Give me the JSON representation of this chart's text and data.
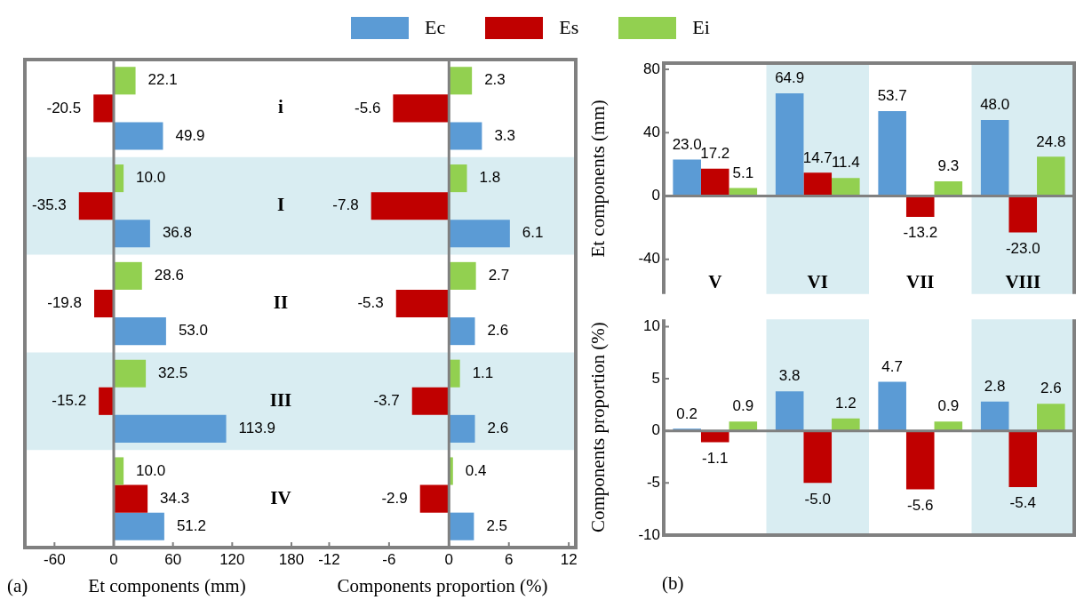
{
  "chart_data": [
    {
      "type": "bar",
      "orientation": "horizontal",
      "xlabel": "Et components (mm)",
      "categories": [
        "i",
        "I",
        "II",
        "III",
        "IV"
      ],
      "series": [
        {
          "name": "Ec",
          "color": "#5b9bd5",
          "values": [
            49.9,
            36.8,
            53,
            113.9,
            51.2
          ],
          "value_labels": [
            "49.9",
            "36.8",
            "53.0",
            "113.9",
            "51.2"
          ]
        },
        {
          "name": "Es",
          "color": "#c00000",
          "values": [
            -20.5,
            -35.3,
            -19.8,
            -15.2,
            34.3
          ],
          "value_labels": [
            "-20.5",
            "-35.3",
            "-19.8",
            "-15.2",
            "34.3"
          ]
        },
        {
          "name": "Ei",
          "color": "#92d050",
          "values": [
            22.1,
            10,
            28.6,
            32.5,
            10
          ],
          "value_labels": [
            "22.1",
            "10.0",
            "28.6",
            "32.5",
            "10.0"
          ]
        }
      ],
      "xlim": [
        -90,
        198
      ],
      "xticks": [
        -60,
        0,
        60,
        120,
        180
      ],
      "legend": "top",
      "bands": [
        {
          "axis": "y",
          "from": "I",
          "to": "I",
          "color": "#d9edf2"
        },
        {
          "axis": "y",
          "from": "III",
          "to": "III",
          "color": "#d9edf2"
        }
      ],
      "annotations": [
        "(a)"
      ]
    },
    {
      "type": "bar",
      "orientation": "horizontal",
      "xlabel": "Components proportion (%)",
      "categories": [
        "i",
        "I",
        "II",
        "III",
        "IV"
      ],
      "series": [
        {
          "color": "#5b9bd5",
          "values": [
            3.3,
            6.1,
            2.6,
            2.6,
            2.5
          ],
          "value_labels": [
            "3.3",
            "6.1",
            "2.6",
            "2.6",
            "2.5"
          ]
        },
        {
          "color": "#c00000",
          "values": [
            -5.6,
            -7.8,
            -5.3,
            -3.7,
            -2.9
          ],
          "value_labels": [
            "-5.6",
            "-7.8",
            "-5.3",
            "-3.7",
            "-2.9"
          ]
        },
        {
          "color": "#92d050",
          "values": [
            2.3,
            1.8,
            2.7,
            1.1,
            0.4
          ],
          "value_labels": [
            "2.3",
            "1.8",
            "2.7",
            "1.1",
            "0.4"
          ]
        }
      ],
      "xlim": [
        -14,
        12.7
      ],
      "xticks": [
        -12,
        -6,
        0,
        6,
        12
      ],
      "tick_labels": "x",
      "bands": [
        {
          "axis": "y",
          "from": "I",
          "to": "I",
          "color": "#d9edf2"
        },
        {
          "axis": "y",
          "from": "III",
          "to": "III",
          "color": "#d9edf2"
        }
      ]
    },
    {
      "type": "bar",
      "ylabel": "Et components (mm)",
      "categories": [
        "V",
        "VI",
        "VII",
        "VIII"
      ],
      "series": [
        {
          "color": "#5b9bd5",
          "values": [
            23,
            64.9,
            53.7,
            48
          ],
          "value_labels": [
            "23.0",
            "64.9",
            "53.7",
            "48.0"
          ]
        },
        {
          "color": "#c00000",
          "values": [
            17.2,
            14.7,
            -13.2,
            -23
          ],
          "value_labels": [
            "17.2",
            "14.7",
            "-13.2",
            "-23.0"
          ]
        },
        {
          "color": "#92d050",
          "values": [
            5.1,
            11.4,
            9.3,
            24.8
          ],
          "value_labels": [
            "5.1",
            "11.4",
            "9.3",
            "24.8"
          ]
        }
      ],
      "ylim": [
        -62,
        84
      ],
      "yticks": [
        -40,
        0,
        40,
        80
      ],
      "bands": [
        {
          "axis": "x",
          "from": "VI",
          "to": "VI",
          "color": "#d9edf2"
        },
        {
          "axis": "x",
          "from": "VIII",
          "to": "VIII",
          "color": "#d9edf2"
        }
      ]
    },
    {
      "type": "bar",
      "ylabel": "Components proportion (%)",
      "categories": [
        "V",
        "VI",
        "VII",
        "VIII"
      ],
      "series": [
        {
          "color": "#5b9bd5",
          "values": [
            0.2,
            3.8,
            4.7,
            2.8
          ],
          "value_labels": [
            "0.2",
            "3.8",
            "4.7",
            "2.8"
          ]
        },
        {
          "color": "#c00000",
          "values": [
            -1.1,
            -5,
            -5.6,
            -5.4
          ],
          "value_labels": [
            "-1.1",
            "-5.0",
            "-5.6",
            "-5.4"
          ]
        },
        {
          "color": "#92d050",
          "values": [
            0.9,
            1.2,
            0.9,
            2.6
          ],
          "value_labels": [
            "0.9",
            "1.2",
            "0.9",
            "2.6"
          ]
        }
      ],
      "ylim": [
        -10,
        10.7
      ],
      "yticks": [
        -10,
        -5,
        0,
        5,
        10
      ],
      "tick_labels": "y",
      "bands": [
        {
          "axis": "x",
          "from": "VI",
          "to": "VI",
          "color": "#d9edf2"
        },
        {
          "axis": "x",
          "from": "VIII",
          "to": "VIII",
          "color": "#d9edf2"
        }
      ],
      "annotations": [
        "(b)"
      ]
    }
  ]
}
